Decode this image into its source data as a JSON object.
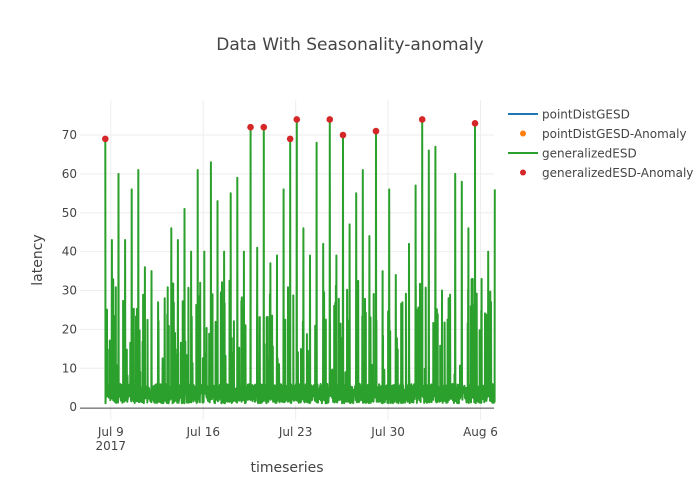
{
  "chart_data": {
    "type": "line",
    "title": "Data With Seasonality-anomaly",
    "xlabel": "timeseries",
    "ylabel": "latency",
    "xlim": [
      "2017-07-06T16:00",
      "2017-08-07T00:30"
    ],
    "ylim": [
      -3.3,
      79
    ],
    "grid": true,
    "legend_position": "right",
    "x_ticks": [
      {
        "date": "2017-07-09",
        "label": "Jul 9",
        "sublabel": "2017"
      },
      {
        "date": "2017-07-16",
        "label": "Jul 16"
      },
      {
        "date": "2017-07-23",
        "label": "Jul 23"
      },
      {
        "date": "2017-07-30",
        "label": "Jul 30"
      },
      {
        "date": "2017-08-06",
        "label": "Aug 6"
      }
    ],
    "y_ticks": [
      0,
      10,
      20,
      30,
      40,
      50,
      60,
      70
    ],
    "legend": [
      {
        "name": "pointDistGESD",
        "kind": "line",
        "color": "#1f77b4"
      },
      {
        "name": "pointDistGESD-Anomaly",
        "kind": "marker",
        "color": "#ff7f0e"
      },
      {
        "name": "generalizedESD",
        "kind": "line",
        "color": "#2ca02c"
      },
      {
        "name": "generalizedESD-Anomaly",
        "kind": "marker",
        "color": "#d62728"
      }
    ],
    "series": {
      "generalizedESD": {
        "baseline_range": [
          1,
          6
        ],
        "spike_start": "2017-07-08T14:00",
        "spike_interval_hours": 12,
        "end": "2017-08-07T00:30",
        "spike_values": [
          69,
          43,
          60,
          43,
          56,
          61,
          36,
          35,
          27,
          28,
          46,
          43,
          51,
          40,
          61,
          40,
          63,
          53,
          40,
          55,
          59,
          40,
          72,
          41,
          72,
          37,
          39,
          56,
          69,
          74,
          46,
          39,
          68,
          42,
          74,
          39,
          70,
          47,
          55,
          61,
          44,
          71,
          35,
          56,
          34,
          27,
          42,
          57,
          74,
          66,
          67,
          30,
          28,
          60,
          58,
          46,
          73,
          33,
          40,
          56
        ]
      },
      "generalizedESD-Anomaly": {
        "spike_indices": [
          0,
          22,
          24,
          28,
          29,
          34,
          36,
          41,
          48,
          56
        ]
      }
    }
  }
}
